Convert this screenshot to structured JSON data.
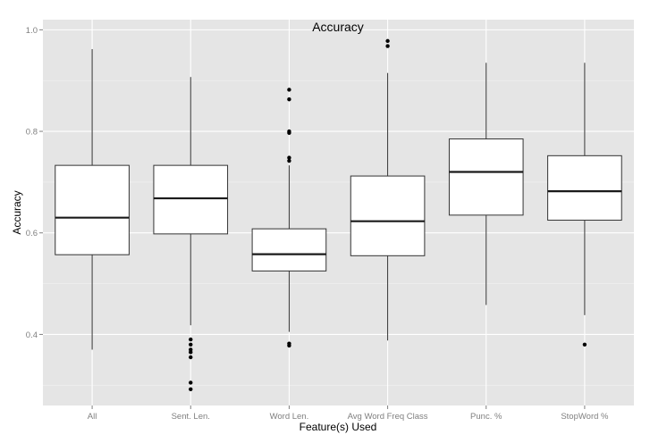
{
  "chart_data": {
    "type": "boxplot",
    "title": "Accuracy",
    "xlabel": "Feature(s) Used",
    "ylabel": "Accuracy",
    "ylim": [
      0.26,
      1.02
    ],
    "yticks": [
      "0.4",
      "0.6",
      "0.8",
      "1.0"
    ],
    "grid": true,
    "categories": [
      "All",
      "Sent. Len.",
      "Word Len.",
      "Avg Word Freq Class",
      "Punc. %",
      "StopWord %"
    ],
    "boxes": [
      {
        "category": "All",
        "whisker_low": 0.37,
        "q1": 0.557,
        "median": 0.63,
        "q3": 0.733,
        "whisker_high": 0.962,
        "outliers": []
      },
      {
        "category": "Sent. Len.",
        "whisker_low": 0.418,
        "q1": 0.598,
        "median": 0.668,
        "q3": 0.733,
        "whisker_high": 0.907,
        "outliers": [
          0.39,
          0.38,
          0.37,
          0.365,
          0.355,
          0.305,
          0.292
        ]
      },
      {
        "category": "Word Len.",
        "whisker_low": 0.405,
        "q1": 0.525,
        "median": 0.558,
        "q3": 0.608,
        "whisker_high": 0.733,
        "outliers": [
          0.882,
          0.863,
          0.8,
          0.797,
          0.748,
          0.742,
          0.382,
          0.378
        ]
      },
      {
        "category": "Avg Word Freq Class",
        "whisker_low": 0.388,
        "q1": 0.555,
        "median": 0.623,
        "q3": 0.712,
        "whisker_high": 0.915,
        "outliers": [
          0.978,
          0.968
        ]
      },
      {
        "category": "Punc. %",
        "whisker_low": 0.458,
        "q1": 0.635,
        "median": 0.72,
        "q3": 0.785,
        "whisker_high": 0.935,
        "outliers": []
      },
      {
        "category": "StopWord %",
        "whisker_low": 0.438,
        "q1": 0.625,
        "median": 0.682,
        "q3": 0.752,
        "whisker_high": 0.935,
        "outliers": [
          0.38
        ]
      }
    ],
    "colors": {
      "panel": "#e5e5e5",
      "grid_major": "#ffffff",
      "grid_minor": "#f2f2f2",
      "box_fill": "#ffffff",
      "box_stroke": "#333333",
      "median": "#1a1a1a",
      "outlier": "#000000"
    }
  }
}
